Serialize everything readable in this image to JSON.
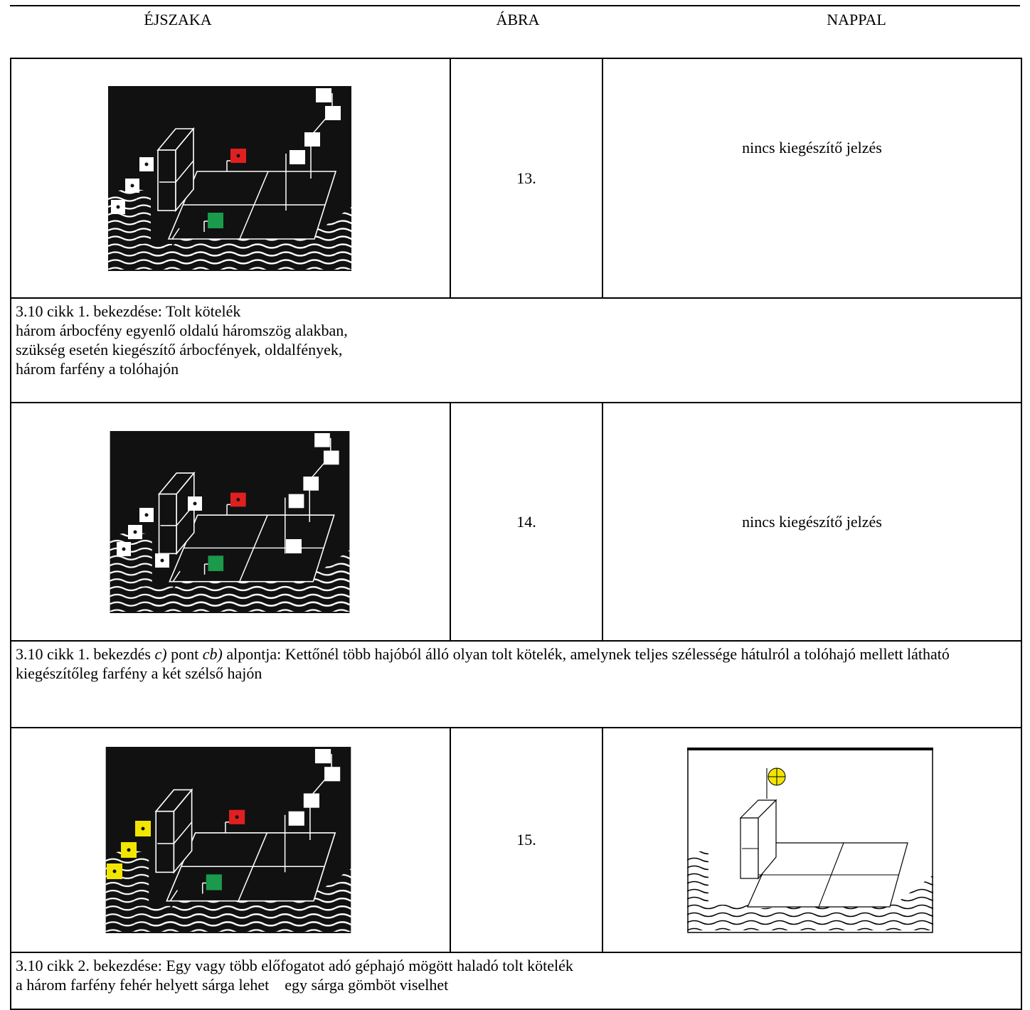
{
  "header": {
    "columns": [
      "ÉJSZAKA",
      "ÁBRA",
      "NAPPAL"
    ]
  },
  "table": {
    "rows": [
      {
        "figure": "13.",
        "day": "nincs kiegészítő jelzés",
        "description": [
          [
            "3.10 cikk 1. bekezdése: Tolt kötelék"
          ],
          [
            "három árbocfény egyenlő oldalú háromszög alakban,"
          ],
          [
            "szükség esetén kiegészítő árbocfények, oldalfények,"
          ],
          [
            "három farfény a tolóhajón"
          ]
        ]
      },
      {
        "figure": "14.",
        "day": "nincs kiegészítő jelzés",
        "description": [
          [
            "3.10 cikk 1. bekezdés ",
            {
              "text": "c)",
              "italic": true
            },
            " pont ",
            {
              "text": "cb)",
              "italic": true
            },
            " alpontja: Kettőnél több hajóból álló olyan tolt kötelék, amelynek teljes szélessége hátulról a tolóhajó mellett látható"
          ],
          [
            "kiegészítőleg farfény a két szélső hajón"
          ]
        ]
      },
      {
        "figure": "15.",
        "description": [
          [
            "3.10 cikk 2. bekezdése: Egy vagy több előfogatot adó géphajó mögött haladó tolt kötelék"
          ],
          [
            "a három farfény fehér helyett sárga lehet    egy sárga gömböt viselhet"
          ]
        ]
      }
    ]
  }
}
